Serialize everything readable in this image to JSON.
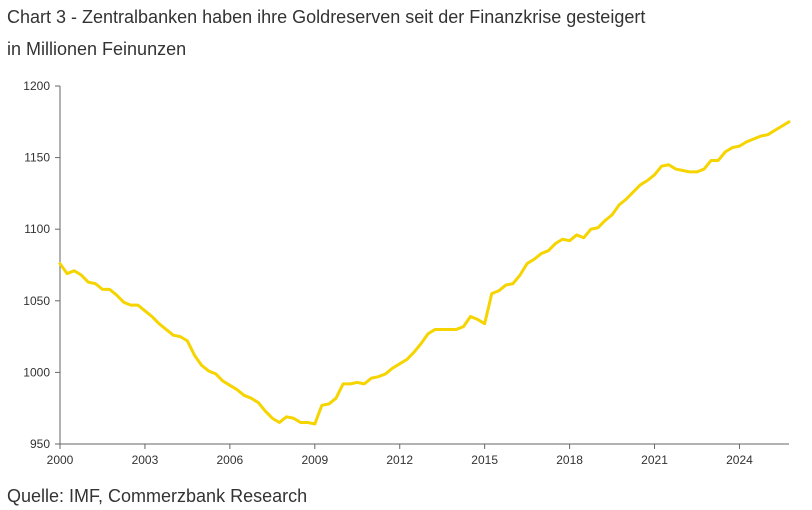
{
  "title": "Chart 3 - Zentralbanken haben ihre Goldreserven seit der Finanzkrise gesteigert",
  "subtitle": "in Millionen Feinunzen",
  "source": "Quelle: IMF, Commerzbank Research",
  "colors": {
    "line": "#F5D400",
    "axis": "#666666",
    "text": "#333333"
  },
  "chart_data": {
    "type": "line",
    "title": "Chart 3 - Zentralbanken haben ihre Goldreserven seit der Finanzkrise gesteigert",
    "subtitle": "in Millionen Feinunzen",
    "xlabel": "",
    "ylabel": "",
    "xlim": [
      2000,
      2025.75
    ],
    "ylim": [
      950,
      1200
    ],
    "grid": false,
    "legend": "none",
    "x_ticks": [
      2000,
      2003,
      2006,
      2009,
      2012,
      2015,
      2018,
      2021,
      2024
    ],
    "y_ticks": [
      950,
      1000,
      1050,
      1100,
      1150,
      1200
    ],
    "x_tick_labels": [
      "2000",
      "2003",
      "2006",
      "2009",
      "2012",
      "2015",
      "2018",
      "2021",
      "2024"
    ],
    "y_tick_labels": [
      "950",
      "1000",
      "1050",
      "1100",
      "1150",
      "1200"
    ],
    "series": [
      {
        "points": [
          [
            2000.0,
            1076
          ],
          [
            2000.25,
            1069
          ],
          [
            2000.5,
            1071
          ],
          [
            2000.75,
            1068
          ],
          [
            2001.0,
            1063
          ],
          [
            2001.25,
            1062
          ],
          [
            2001.5,
            1058
          ],
          [
            2001.75,
            1058
          ],
          [
            2002.0,
            1054
          ],
          [
            2002.25,
            1049
          ],
          [
            2002.5,
            1047
          ],
          [
            2002.75,
            1047
          ],
          [
            2003.0,
            1043
          ],
          [
            2003.25,
            1039
          ],
          [
            2003.5,
            1034
          ],
          [
            2003.75,
            1030
          ],
          [
            2004.0,
            1026
          ],
          [
            2004.25,
            1025
          ],
          [
            2004.5,
            1022
          ],
          [
            2004.75,
            1012
          ],
          [
            2005.0,
            1005
          ],
          [
            2005.25,
            1001
          ],
          [
            2005.5,
            999
          ],
          [
            2005.75,
            994
          ],
          [
            2006.0,
            991
          ],
          [
            2006.25,
            988
          ],
          [
            2006.5,
            984
          ],
          [
            2006.75,
            982
          ],
          [
            2007.0,
            979
          ],
          [
            2007.25,
            973
          ],
          [
            2007.5,
            968
          ],
          [
            2007.75,
            965
          ],
          [
            2008.0,
            969
          ],
          [
            2008.25,
            968
          ],
          [
            2008.5,
            965
          ],
          [
            2008.75,
            965
          ],
          [
            2009.0,
            964
          ],
          [
            2009.25,
            977
          ],
          [
            2009.5,
            978
          ],
          [
            2009.75,
            982
          ],
          [
            2010.0,
            992
          ],
          [
            2010.25,
            992
          ],
          [
            2010.5,
            993
          ],
          [
            2010.75,
            992
          ],
          [
            2011.0,
            996
          ],
          [
            2011.25,
            997
          ],
          [
            2011.5,
            999
          ],
          [
            2011.75,
            1003
          ],
          [
            2012.0,
            1006
          ],
          [
            2012.25,
            1009
          ],
          [
            2012.5,
            1014
          ],
          [
            2012.75,
            1020
          ],
          [
            2013.0,
            1027
          ],
          [
            2013.25,
            1030
          ],
          [
            2013.5,
            1030
          ],
          [
            2013.75,
            1030
          ],
          [
            2014.0,
            1030
          ],
          [
            2014.25,
            1032
          ],
          [
            2014.5,
            1039
          ],
          [
            2014.75,
            1037
          ],
          [
            2015.0,
            1034
          ],
          [
            2015.25,
            1055
          ],
          [
            2015.5,
            1057
          ],
          [
            2015.75,
            1061
          ],
          [
            2016.0,
            1062
          ],
          [
            2016.25,
            1068
          ],
          [
            2016.5,
            1076
          ],
          [
            2016.75,
            1079
          ],
          [
            2017.0,
            1083
          ],
          [
            2017.25,
            1085
          ],
          [
            2017.5,
            1090
          ],
          [
            2017.75,
            1093
          ],
          [
            2018.0,
            1092
          ],
          [
            2018.25,
            1096
          ],
          [
            2018.5,
            1094
          ],
          [
            2018.75,
            1100
          ],
          [
            2019.0,
            1101
          ],
          [
            2019.25,
            1106
          ],
          [
            2019.5,
            1110
          ],
          [
            2019.75,
            1117
          ],
          [
            2020.0,
            1121
          ],
          [
            2020.25,
            1126
          ],
          [
            2020.5,
            1131
          ],
          [
            2020.75,
            1134
          ],
          [
            2021.0,
            1138
          ],
          [
            2021.25,
            1144
          ],
          [
            2021.5,
            1145
          ],
          [
            2021.75,
            1142
          ],
          [
            2022.0,
            1141
          ],
          [
            2022.25,
            1140
          ],
          [
            2022.5,
            1140
          ],
          [
            2022.75,
            1142
          ],
          [
            2023.0,
            1148
          ],
          [
            2023.25,
            1148
          ],
          [
            2023.5,
            1154
          ],
          [
            2023.75,
            1157
          ],
          [
            2024.0,
            1158
          ],
          [
            2024.25,
            1161
          ],
          [
            2024.5,
            1163
          ],
          [
            2024.75,
            1165
          ],
          [
            2025.0,
            1166
          ],
          [
            2025.25,
            1169
          ],
          [
            2025.5,
            1172
          ],
          [
            2025.75,
            1175
          ]
        ]
      }
    ]
  }
}
